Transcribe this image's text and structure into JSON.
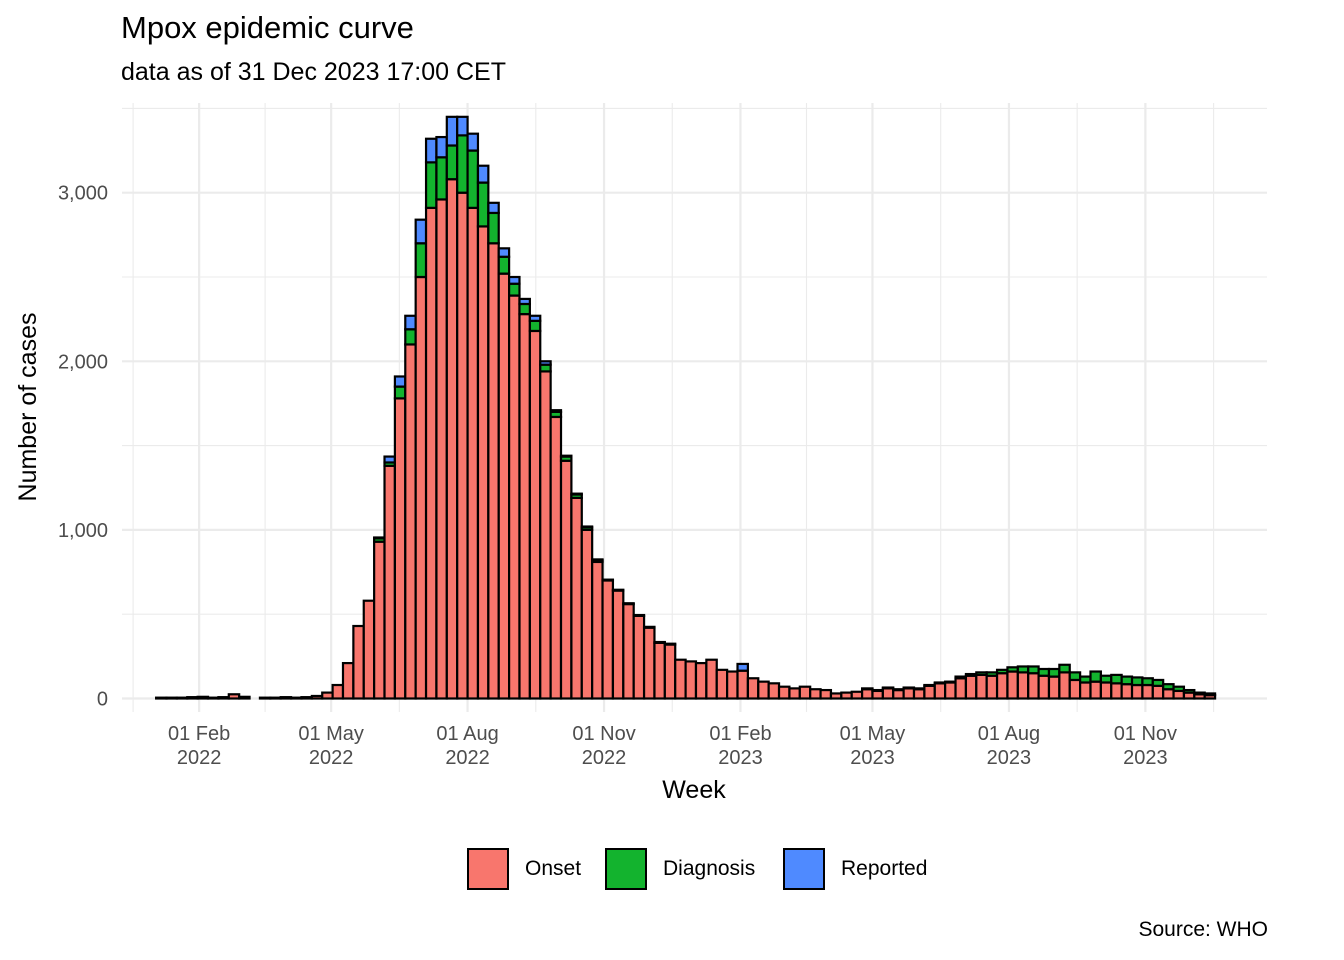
{
  "header": {
    "title": "Mpox epidemic curve",
    "subtitle": "data as of 31 Dec 2023 17:00 CET"
  },
  "caption": "Source: WHO",
  "chart_data": {
    "type": "bar",
    "stacked": true,
    "title": "Mpox epidemic curve",
    "subtitle": "data as of 31 Dec 2023 17:00 CET",
    "xlabel": "Week",
    "ylabel": "Number of cases",
    "xlim": [
      "2021-12-11",
      "2024-01-22"
    ],
    "ylim": [
      0,
      3550
    ],
    "y_ticks": [
      0,
      1000,
      2000,
      3000
    ],
    "y_tick_labels": [
      "0",
      "1,000",
      "2,000",
      "3,000"
    ],
    "x_ticks": [
      "2022-02-01",
      "2022-05-01",
      "2022-08-01",
      "2022-11-01",
      "2023-02-01",
      "2023-05-01",
      "2023-08-01",
      "2023-11-01"
    ],
    "x_tick_labels": [
      [
        "01 Feb",
        "2022"
      ],
      [
        "01 May",
        "2022"
      ],
      [
        "01 Aug",
        "2022"
      ],
      [
        "01 Nov",
        "2022"
      ],
      [
        "01 Feb",
        "2023"
      ],
      [
        "01 May",
        "2023"
      ],
      [
        "01 Aug",
        "2023"
      ],
      [
        "01 Nov",
        "2023"
      ]
    ],
    "first_week": "2022-01-03",
    "bar_interval_days": 7,
    "series": [
      {
        "name": "Onset",
        "color": "#F8766D",
        "values": [
          5,
          5,
          5,
          8,
          10,
          5,
          8,
          25,
          10,
          null,
          5,
          5,
          8,
          5,
          8,
          15,
          35,
          80,
          210,
          430,
          580,
          930,
          1380,
          1780,
          2100,
          2500,
          2910,
          2960,
          3080,
          3000,
          2910,
          2800,
          2700,
          2520,
          2390,
          2280,
          2180,
          1940,
          1670,
          1410,
          1190,
          1000,
          810,
          700,
          640,
          560,
          490,
          420,
          330,
          320,
          230,
          220,
          210,
          230,
          170,
          160,
          165,
          120,
          100,
          90,
          70,
          60,
          70,
          55,
          50,
          30,
          35,
          40,
          55,
          45,
          60,
          50,
          60,
          55,
          75,
          90,
          95,
          120,
          135,
          140,
          135,
          150,
          160,
          155,
          150,
          135,
          130,
          155,
          110,
          95,
          100,
          95,
          90,
          85,
          80,
          80,
          75,
          55,
          45,
          35,
          25,
          20
        ]
      },
      {
        "name": "Diagnosis",
        "color": "#13B32E",
        "values": [
          0,
          0,
          0,
          0,
          0,
          0,
          0,
          0,
          0,
          null,
          0,
          0,
          0,
          0,
          0,
          0,
          0,
          0,
          0,
          0,
          0,
          20,
          20,
          70,
          90,
          200,
          270,
          250,
          200,
          340,
          340,
          260,
          180,
          100,
          70,
          60,
          60,
          40,
          30,
          25,
          20,
          15,
          10,
          5,
          5,
          5,
          5,
          5,
          5,
          5,
          0,
          0,
          0,
          0,
          0,
          0,
          0,
          0,
          0,
          0,
          0,
          0,
          0,
          0,
          0,
          0,
          0,
          0,
          5,
          5,
          5,
          5,
          5,
          5,
          5,
          5,
          5,
          10,
          10,
          15,
          20,
          20,
          25,
          35,
          40,
          40,
          45,
          45,
          45,
          35,
          60,
          40,
          50,
          45,
          45,
          40,
          35,
          30,
          25,
          15,
          10,
          10
        ]
      },
      {
        "name": "Reported",
        "color": "#4F8AFF",
        "values": [
          0,
          0,
          0,
          0,
          0,
          0,
          0,
          0,
          0,
          null,
          0,
          0,
          0,
          0,
          0,
          0,
          0,
          0,
          0,
          0,
          0,
          5,
          35,
          60,
          80,
          140,
          140,
          120,
          170,
          110,
          100,
          100,
          60,
          50,
          40,
          30,
          30,
          20,
          10,
          5,
          5,
          5,
          5,
          0,
          0,
          0,
          0,
          0,
          0,
          0,
          0,
          0,
          0,
          0,
          0,
          0,
          40,
          0,
          0,
          0,
          0,
          0,
          0,
          0,
          0,
          0,
          0,
          0,
          0,
          0,
          0,
          0,
          0,
          0,
          0,
          0,
          0,
          0,
          0,
          0,
          0,
          0,
          0,
          0,
          0,
          0,
          0,
          0,
          0,
          0,
          0,
          0,
          0,
          0,
          0,
          0,
          0,
          0,
          0,
          0,
          0,
          0
        ]
      }
    ],
    "grid": true,
    "legend_position": "bottom"
  }
}
